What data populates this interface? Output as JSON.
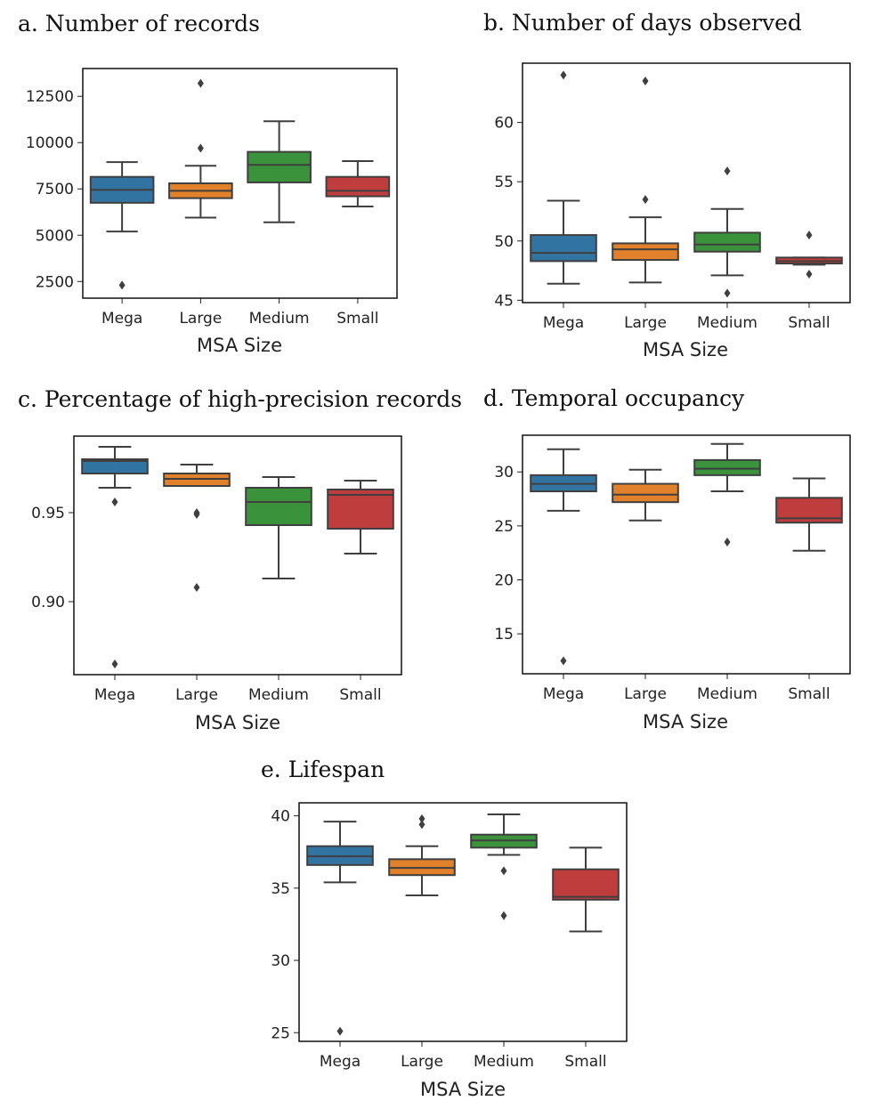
{
  "chart_data": [
    {
      "type": "box",
      "title": "a. Number of records",
      "xlabel": "MSA Size",
      "ylabel": "",
      "categories": [
        "Mega",
        "Large",
        "Medium",
        "Small"
      ],
      "colors": [
        "#3274a1",
        "#e1812c",
        "#3a923a",
        "#c03d3e"
      ],
      "ylim": [
        1600,
        14000
      ],
      "yticks": [
        2500,
        5000,
        7500,
        10000,
        12500
      ],
      "ytick_labels": [
        "2500",
        "5000",
        "7500",
        "10000",
        "12500"
      ],
      "boxes": [
        {
          "whislo": 5200,
          "q1": 6750,
          "median": 7450,
          "q3": 8150,
          "whishi": 8950,
          "fliers": [
            2300
          ]
        },
        {
          "whislo": 5950,
          "q1": 7000,
          "median": 7400,
          "q3": 7800,
          "whishi": 8750,
          "fliers": [
            9700,
            13200
          ]
        },
        {
          "whislo": 5700,
          "q1": 7850,
          "median": 8800,
          "q3": 9500,
          "whishi": 11150,
          "fliers": []
        },
        {
          "whislo": 6550,
          "q1": 7100,
          "median": 7400,
          "q3": 8150,
          "whishi": 9000,
          "fliers": []
        }
      ]
    },
    {
      "type": "box",
      "title": "b. Number of days observed",
      "xlabel": "MSA Size",
      "ylabel": "",
      "categories": [
        "Mega",
        "Large",
        "Medium",
        "Small"
      ],
      "colors": [
        "#3274a1",
        "#e1812c",
        "#3a923a",
        "#c03d3e"
      ],
      "ylim": [
        44.8,
        65.0
      ],
      "yticks": [
        45,
        50,
        55,
        60
      ],
      "ytick_labels": [
        "45",
        "50",
        "55",
        "60"
      ],
      "boxes": [
        {
          "whislo": 46.4,
          "q1": 48.3,
          "median": 49.0,
          "q3": 50.5,
          "whishi": 53.4,
          "fliers": [
            64.0
          ]
        },
        {
          "whislo": 46.5,
          "q1": 48.4,
          "median": 49.3,
          "q3": 49.8,
          "whishi": 52.0,
          "fliers": [
            53.5,
            63.5
          ]
        },
        {
          "whislo": 47.1,
          "q1": 49.1,
          "median": 49.7,
          "q3": 50.7,
          "whishi": 52.7,
          "fliers": [
            45.6,
            55.9
          ]
        },
        {
          "whislo": 48.0,
          "q1": 48.1,
          "median": 48.3,
          "q3": 48.6,
          "whishi": 48.6,
          "fliers": [
            47.2,
            50.5
          ]
        }
      ]
    },
    {
      "type": "box",
      "title": "c. Percentage of high-precision records",
      "xlabel": "MSA Size",
      "ylabel": "",
      "categories": [
        "Mega",
        "Large",
        "Medium",
        "Small"
      ],
      "colors": [
        "#3274a1",
        "#e1812c",
        "#3a923a",
        "#c03d3e"
      ],
      "ylim": [
        0.859,
        0.993
      ],
      "yticks": [
        0.9,
        0.95
      ],
      "ytick_labels": [
        "0.90",
        "0.95"
      ],
      "boxes": [
        {
          "whislo": 0.964,
          "q1": 0.972,
          "median": 0.979,
          "q3": 0.98,
          "whishi": 0.987,
          "fliers": [
            0.956,
            0.865
          ]
        },
        {
          "whislo": 0.965,
          "q1": 0.965,
          "median": 0.969,
          "q3": 0.972,
          "whishi": 0.977,
          "fliers": [
            0.95,
            0.949,
            0.908
          ]
        },
        {
          "whislo": 0.913,
          "q1": 0.943,
          "median": 0.956,
          "q3": 0.964,
          "whishi": 0.97,
          "fliers": []
        },
        {
          "whislo": 0.927,
          "q1": 0.941,
          "median": 0.96,
          "q3": 0.963,
          "whishi": 0.968,
          "fliers": []
        }
      ]
    },
    {
      "type": "box",
      "title": "d. Temporal occupancy",
      "xlabel": "MSA Size",
      "ylabel": "",
      "categories": [
        "Mega",
        "Large",
        "Medium",
        "Small"
      ],
      "colors": [
        "#3274a1",
        "#e1812c",
        "#3a923a",
        "#c03d3e"
      ],
      "ylim": [
        11.3,
        33.4
      ],
      "yticks": [
        15,
        20,
        25,
        30
      ],
      "ytick_labels": [
        "15",
        "20",
        "25",
        "30"
      ],
      "boxes": [
        {
          "whislo": 26.4,
          "q1": 28.2,
          "median": 28.9,
          "q3": 29.7,
          "whishi": 32.1,
          "fliers": [
            12.5
          ]
        },
        {
          "whislo": 25.5,
          "q1": 27.2,
          "median": 27.9,
          "q3": 28.9,
          "whishi": 30.2,
          "fliers": []
        },
        {
          "whislo": 28.2,
          "q1": 29.7,
          "median": 30.3,
          "q3": 31.1,
          "whishi": 32.6,
          "fliers": [
            23.5
          ]
        },
        {
          "whislo": 22.7,
          "q1": 25.3,
          "median": 25.7,
          "q3": 27.6,
          "whishi": 29.4,
          "fliers": []
        }
      ]
    },
    {
      "type": "box",
      "title": "e. Lifespan",
      "xlabel": "MSA Size",
      "ylabel": "",
      "categories": [
        "Mega",
        "Large",
        "Medium",
        "Small"
      ],
      "colors": [
        "#3274a1",
        "#e1812c",
        "#3a923a",
        "#c03d3e"
      ],
      "ylim": [
        24.4,
        40.9
      ],
      "yticks": [
        25,
        30,
        35,
        40
      ],
      "ytick_labels": [
        "25",
        "30",
        "35",
        "40"
      ],
      "boxes": [
        {
          "whislo": 35.4,
          "q1": 36.6,
          "median": 37.2,
          "q3": 37.9,
          "whishi": 39.6,
          "fliers": [
            25.1
          ]
        },
        {
          "whislo": 34.5,
          "q1": 35.9,
          "median": 36.4,
          "q3": 37.0,
          "whishi": 37.9,
          "fliers": [
            39.4,
            39.8
          ]
        },
        {
          "whislo": 37.3,
          "q1": 37.8,
          "median": 38.3,
          "q3": 38.7,
          "whishi": 40.1,
          "fliers": [
            36.2,
            33.1
          ]
        },
        {
          "whislo": 32.0,
          "q1": 34.2,
          "median": 34.4,
          "q3": 36.3,
          "whishi": 37.8,
          "fliers": []
        }
      ]
    }
  ]
}
